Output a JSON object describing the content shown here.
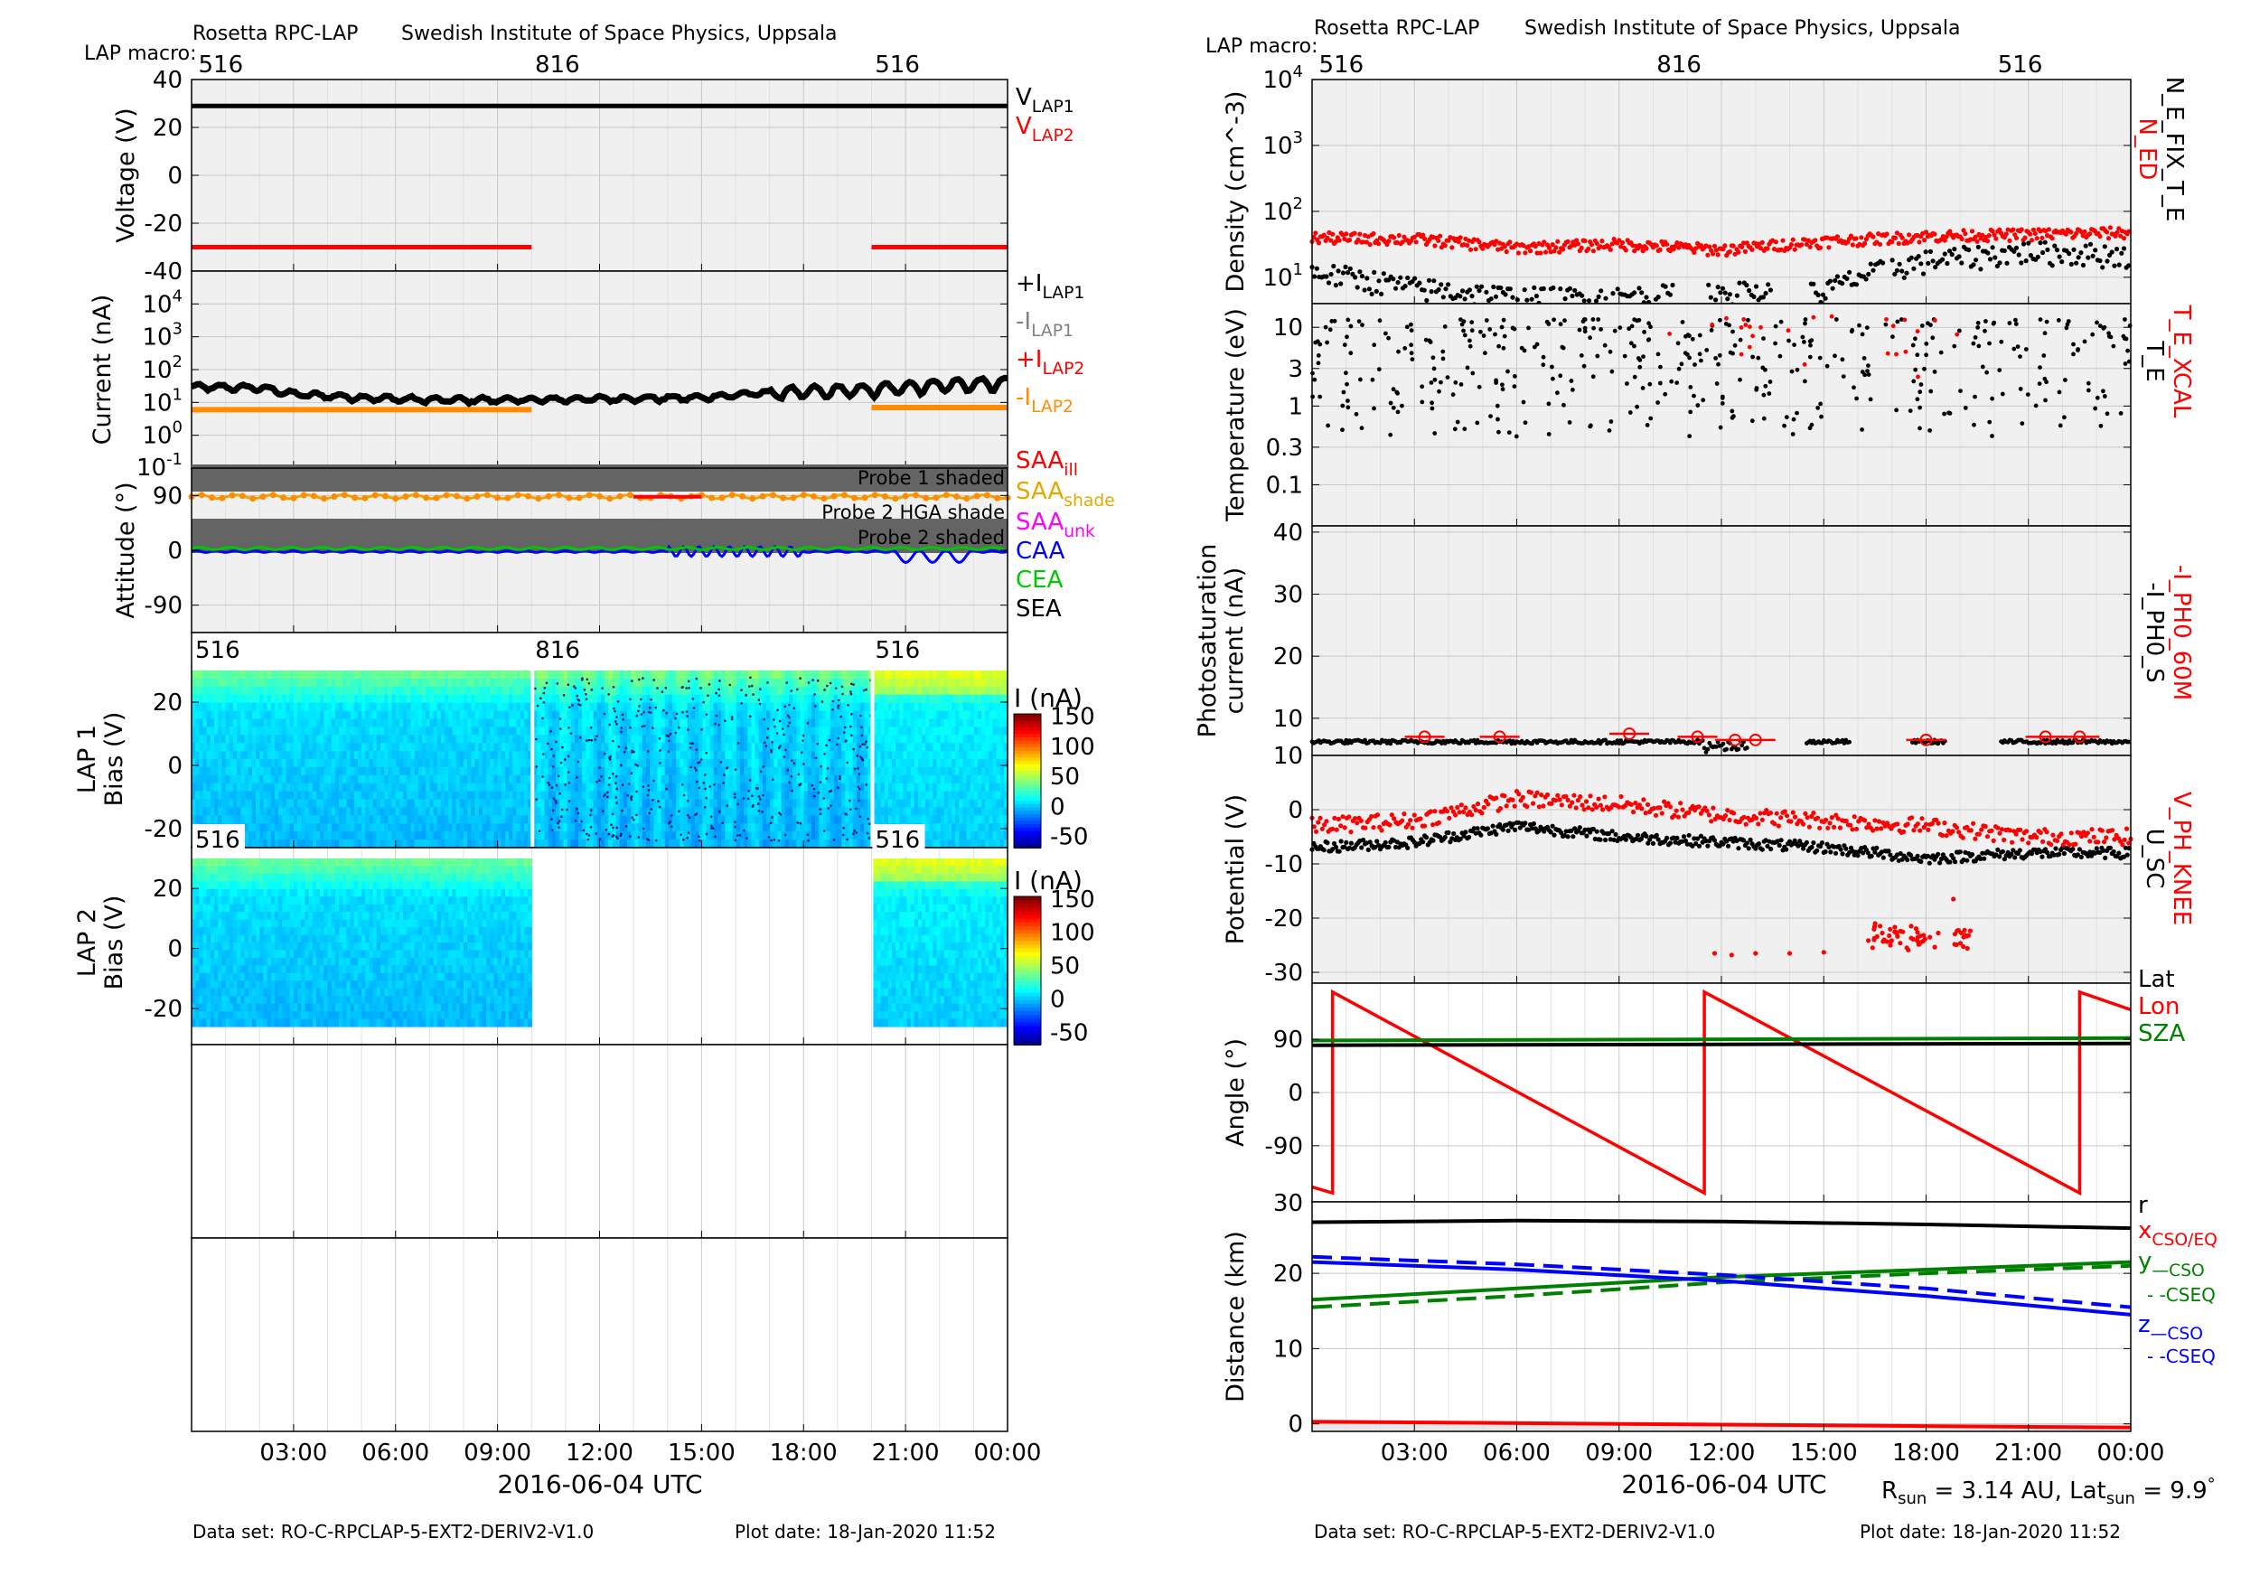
{
  "header": {
    "left_title": "Rosetta RPC-LAP",
    "left_institute": "Swedish Institute of Space Physics, Uppsala",
    "right_title": "Rosetta RPC-LAP",
    "right_institute": "Swedish Institute of Space Physics, Uppsala",
    "macro_label": "LAP macro:",
    "macros": [
      "516",
      "816",
      "516"
    ]
  },
  "footer": {
    "left_dataset": "Data set: RO-C-RPCLAP-5-EXT2-DERIV2-V1.0",
    "left_plotdate": "Plot date: 18-Jan-2020 11:52",
    "right_dataset": "Data set: RO-C-RPCLAP-5-EXT2-DERIV2-V1.0",
    "right_plotdate": "Plot date: 18-Jan-2020 11:52",
    "sun_info": "R_sun = 3.14 AU, Lat_sun = 9.9°",
    "r_sun": "3.14 AU",
    "lat_sun": "9.9"
  },
  "xaxis": {
    "label": "2016-06-04 UTC",
    "ticks": [
      "03:00",
      "06:00",
      "09:00",
      "12:00",
      "15:00",
      "18:00",
      "21:00",
      "00:00"
    ],
    "range_hours": [
      0,
      24
    ]
  },
  "colors": {
    "black": "#000000",
    "red": "#ff0000",
    "orange": "#ff8c00",
    "gray": "#808080",
    "green": "#00c800",
    "darkgreen": "#008000",
    "blue": "#0000ff",
    "magenta": "#ff00ff",
    "gold": "#e6a800",
    "panel_bg": "#f0f0f0",
    "shade": "#646464"
  },
  "chart_data": [
    {
      "type": "line",
      "panel": "voltage",
      "ylabel": "Voltage (V)",
      "ylim": [
        -40,
        40
      ],
      "yticks": [
        "40",
        "20",
        "0",
        "-20",
        "-40"
      ],
      "legend": [
        "V_LAP1",
        "V_LAP2"
      ],
      "series": [
        {
          "name": "V_LAP1",
          "x": [
            0,
            24
          ],
          "y": [
            29,
            29
          ]
        },
        {
          "name": "V_LAP2",
          "segments": [
            {
              "x": [
                0,
                10
              ],
              "y": [
                -30,
                -30
              ]
            },
            {
              "x": [
                20,
                24
              ],
              "y": [
                -30,
                -30
              ]
            }
          ]
        }
      ]
    },
    {
      "type": "line",
      "panel": "current",
      "ylabel": "Current (nA)",
      "scale": "log",
      "ylim": [
        0.1,
        100000
      ],
      "yticks": [
        "10^4",
        "10^3",
        "10^2",
        "10^1",
        "10^0",
        "10^-1"
      ],
      "legend": [
        "+I_LAP1",
        "-I_LAP1",
        "+I_LAP2",
        "-I_LAP2"
      ],
      "series": [
        {
          "name": "+I_LAP1",
          "x": [
            0,
            2,
            3,
            5,
            7,
            10,
            12,
            15,
            17,
            20,
            22,
            24
          ],
          "y": [
            30,
            28,
            18,
            14,
            12,
            12,
            13,
            14,
            20,
            25,
            35,
            40
          ]
        },
        {
          "name": "-I_LAP2",
          "segments": [
            {
              "x": [
                0,
                10
              ],
              "y": [
                6,
                6
              ]
            },
            {
              "x": [
                20,
                24
              ],
              "y": [
                7,
                7
              ]
            }
          ]
        }
      ]
    },
    {
      "type": "line",
      "panel": "attitude",
      "ylabel": "Attitude (°)",
      "yticks": [
        "90",
        "0",
        "-90"
      ],
      "ylim": [
        -135,
        135
      ],
      "annotations": [
        "Probe 1 shaded",
        "Probe 2 HGA shade",
        "Probe 2 shaded"
      ],
      "legend": [
        "SAA_ill",
        "SAA_shade",
        "SAA_unk",
        "CAA",
        "CEA",
        "SEA"
      ],
      "series": [
        {
          "name": "SAA",
          "x": [
            0,
            24
          ],
          "y": [
            88,
            88
          ]
        },
        {
          "name": "CAA",
          "x": [
            0,
            24
          ],
          "y": [
            0,
            0
          ]
        },
        {
          "name": "CEA",
          "x": [
            0,
            24
          ],
          "y": [
            2,
            2
          ]
        }
      ]
    },
    {
      "type": "heatmap",
      "panel": "lap1",
      "ylabel": "LAP 1 Bias (V)",
      "yticks": [
        "20",
        "0",
        "-20"
      ],
      "ylim": [
        -26,
        30
      ],
      "colorbar_label": "I (nA)",
      "colorbar_ticks": [
        "150",
        "100",
        "50",
        "0",
        "-50"
      ],
      "macro_labels": [
        "516",
        "816",
        "516"
      ],
      "segments_hours": [
        [
          0,
          10
        ],
        [
          10.05,
          20
        ],
        [
          20.05,
          24
        ]
      ]
    },
    {
      "type": "heatmap",
      "panel": "lap2",
      "ylabel": "LAP 2 Bias (V)",
      "yticks": [
        "20",
        "0",
        "-20"
      ],
      "ylim": [
        -26,
        30
      ],
      "colorbar_label": "I (nA)",
      "colorbar_ticks": [
        "150",
        "100",
        "50",
        "0",
        "-50"
      ],
      "macro_labels": [
        "516",
        "516"
      ],
      "segments_hours": [
        [
          0,
          10
        ],
        [
          20.05,
          24
        ]
      ]
    },
    {
      "type": "scatter",
      "panel": "density",
      "ylabel": "Density (cm^-3)",
      "scale": "log",
      "ylim": [
        1,
        10000
      ],
      "yticks": [
        "10^4",
        "10^3",
        "10^2",
        "10^1"
      ],
      "side_labels": [
        "N_ED",
        "N_E_FIX_T_E"
      ],
      "series": [
        {
          "name": "N_ED",
          "x": [
            0,
            3,
            6,
            9,
            12,
            15,
            18,
            21,
            24
          ],
          "y": [
            40,
            38,
            28,
            32,
            26,
            35,
            42,
            45,
            48
          ]
        },
        {
          "name": "N_E_FIX_T_E",
          "x": [
            0,
            3,
            6,
            9,
            12,
            15,
            18,
            21,
            24
          ],
          "y": [
            12,
            7,
            5,
            5,
            6,
            6,
            18,
            25,
            22
          ]
        }
      ]
    },
    {
      "type": "scatter",
      "panel": "temperature",
      "ylabel": "Temperature (eV)",
      "scale": "log",
      "ylim": [
        0.03,
        20
      ],
      "yticks": [
        "10",
        "3",
        "1",
        "0.3",
        "0.1"
      ],
      "side_labels": [
        "T_E_XCAL",
        "T_E"
      ]
    },
    {
      "type": "scatter",
      "panel": "photosaturation",
      "ylabel": "Photosaturation current (nA)",
      "ylim": [
        10,
        40
      ],
      "yticks": [
        "40",
        "30",
        "20",
        "10"
      ],
      "side_labels": [
        "-I_PH0_60M",
        "-I_PH0_S"
      ],
      "series": [
        {
          "name": "-I_PH0_S",
          "x": [
            0,
            6,
            12,
            18,
            24
          ],
          "y": [
            6,
            6.5,
            6.5,
            6,
            6.5
          ]
        },
        {
          "name": "-I_PH0_60M",
          "x": [
            3.3,
            5.5,
            9.3,
            11.3,
            12.4,
            13,
            18,
            21.5,
            22.5
          ],
          "y": [
            7,
            7,
            7.5,
            7,
            6.5,
            6.5,
            6.5,
            7,
            7
          ]
        }
      ]
    },
    {
      "type": "scatter",
      "panel": "potential",
      "ylabel": "Potential (V)",
      "ylim": [
        -32,
        4
      ],
      "yticks": [
        "10",
        "0",
        "-10",
        "-20",
        "-30"
      ],
      "side_labels": [
        "V_PH_KNEE",
        "U_SC"
      ],
      "series": [
        {
          "name": "V_PH_KNEE",
          "x": [
            0,
            3,
            6,
            9,
            12,
            15,
            18,
            21,
            24
          ],
          "y": [
            -3,
            -2,
            2,
            1,
            -1,
            -2,
            -3,
            -5,
            -5
          ]
        },
        {
          "name": "U_SC",
          "x": [
            0,
            3,
            6,
            9,
            12,
            15,
            18,
            21,
            24
          ],
          "y": [
            -7,
            -6,
            -3,
            -5,
            -6,
            -7,
            -9,
            -8,
            -8
          ]
        }
      ]
    },
    {
      "type": "line",
      "panel": "angle",
      "ylabel": "Angle (°)",
      "ylim": [
        -185,
        185
      ],
      "yticks": [
        "90",
        "0",
        "-90"
      ],
      "legend": [
        "Lat",
        "Lon",
        "SZA"
      ],
      "series": [
        {
          "name": "Lat",
          "x": [
            0,
            24
          ],
          "y": [
            80,
            83
          ]
        },
        {
          "name": "Lon",
          "x": [
            0,
            0.6,
            0.6,
            11.5,
            11.5,
            22.5,
            22.5,
            24
          ],
          "y": [
            -160,
            -170,
            170,
            -170,
            170,
            -170,
            170,
            140
          ]
        },
        {
          "name": "SZA",
          "x": [
            0,
            24
          ],
          "y": [
            88,
            92
          ]
        }
      ]
    },
    {
      "type": "line",
      "panel": "distance",
      "ylabel": "Distance (km)",
      "ylim": [
        -1,
        30
      ],
      "yticks": [
        "30",
        "20",
        "10",
        "0"
      ],
      "legend": [
        "r",
        "x_CSO/EQ",
        "y_—CSO",
        "- -CSEQ",
        "z_—CSO",
        "- -CSEQ"
      ],
      "series": [
        {
          "name": "r",
          "x": [
            0,
            6,
            12,
            18,
            24
          ],
          "y": [
            26.8,
            27,
            26.9,
            26.5,
            26
          ]
        },
        {
          "name": "x_CSO/EQ",
          "x": [
            0,
            24
          ],
          "y": [
            0.3,
            -0.5
          ]
        },
        {
          "name": "y_CSO",
          "x": [
            0,
            6,
            12,
            18,
            24
          ],
          "y": [
            16.5,
            18,
            19.5,
            20.5,
            21.5
          ]
        },
        {
          "name": "y_CSEQ",
          "x": [
            0,
            6,
            12,
            18,
            24
          ],
          "y": [
            15.5,
            17,
            18.8,
            20,
            21
          ]
        },
        {
          "name": "z_CSO",
          "x": [
            0,
            6,
            12,
            18,
            24
          ],
          "y": [
            21.5,
            20.5,
            19,
            17,
            14.5
          ]
        },
        {
          "name": "z_CSEQ",
          "x": [
            0,
            6,
            12,
            18,
            24
          ],
          "y": [
            22.2,
            21.2,
            19.8,
            18,
            15.5
          ]
        }
      ]
    }
  ]
}
